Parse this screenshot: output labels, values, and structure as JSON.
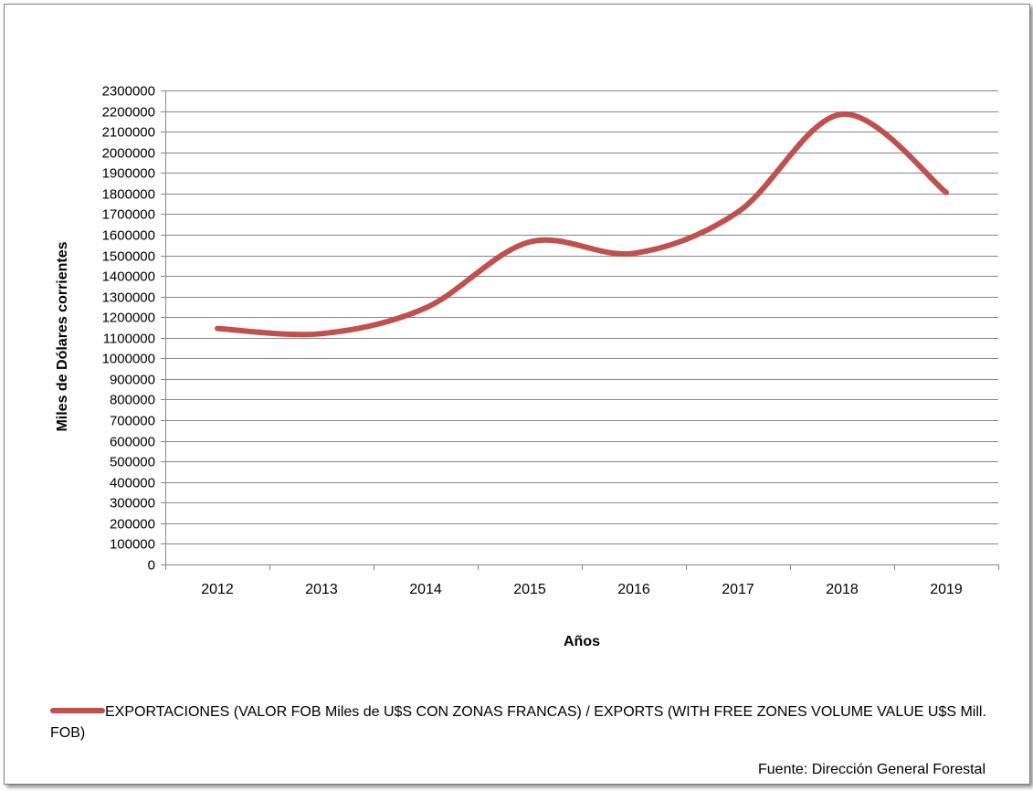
{
  "chart_data": {
    "type": "line",
    "title": "",
    "xlabel": "Años",
    "ylabel": "Miles de Dólares corrientes",
    "categories": [
      "2012",
      "2013",
      "2014",
      "2015",
      "2016",
      "2017",
      "2018",
      "2019"
    ],
    "series": [
      {
        "name": "EXPORTACIONES (VALOR FOB Miles de U$S  CON ZONAS FRANCAS) / EXPORTS (WITH FREE ZONES VOLUME VALUE U$S Mill. FOB)",
        "values": [
          1145000,
          1120000,
          1245000,
          1565000,
          1510000,
          1710000,
          2185000,
          1805000
        ],
        "color": "#c0504d"
      }
    ],
    "ylim": [
      0,
      2300000
    ],
    "ytick_step": 100000,
    "yticks": [
      "0",
      "100000",
      "200000",
      "300000",
      "400000",
      "500000",
      "600000",
      "700000",
      "800000",
      "900000",
      "1000000",
      "1100000",
      "1200000",
      "1300000",
      "1400000",
      "1500000",
      "1600000",
      "1700000",
      "1800000",
      "1900000",
      "2000000",
      "2100000",
      "2200000",
      "2300000"
    ],
    "grid": true,
    "smooth": true,
    "legend_position": "bottom"
  },
  "source_note": "Fuente: Dirección General Forestal"
}
